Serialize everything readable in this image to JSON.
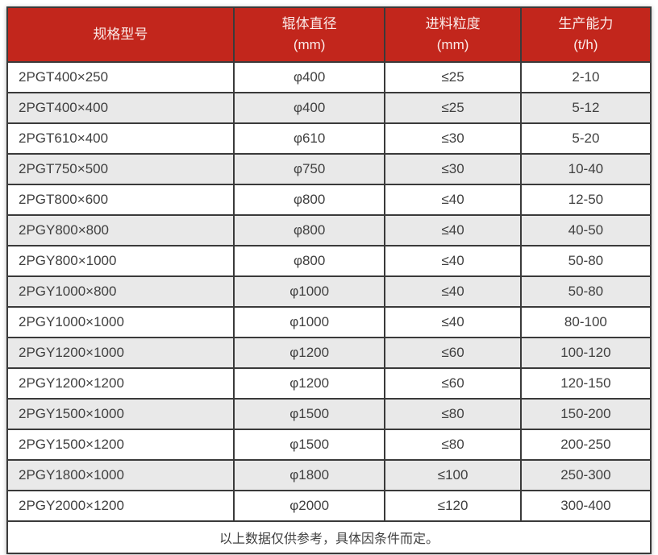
{
  "chart_data": {
    "type": "table",
    "columns": [
      {
        "label": "规格型号",
        "unit": ""
      },
      {
        "label": "辊体直径",
        "unit": "(mm)"
      },
      {
        "label": "进料粒度",
        "unit": "(mm)"
      },
      {
        "label": "生产能力",
        "unit": "(t/h)"
      }
    ],
    "rows": [
      [
        "2PGT400×250",
        "φ400",
        "≤25",
        "2-10"
      ],
      [
        "2PGT400×400",
        "φ400",
        "≤25",
        "5-12"
      ],
      [
        "2PGT610×400",
        "φ610",
        "≤30",
        "5-20"
      ],
      [
        "2PGT750×500",
        "φ750",
        "≤30",
        "10-40"
      ],
      [
        "2PGT800×600",
        "φ800",
        "≤40",
        "12-50"
      ],
      [
        "2PGY800×800",
        "φ800",
        "≤40",
        "40-50"
      ],
      [
        "2PGY800×1000",
        "φ800",
        "≤40",
        "50-80"
      ],
      [
        "2PGY1000×800",
        "φ1000",
        "≤40",
        "50-80"
      ],
      [
        "2PGY1000×1000",
        "φ1000",
        "≤40",
        "80-100"
      ],
      [
        "2PGY1200×1000",
        "φ1200",
        "≤60",
        "100-120"
      ],
      [
        "2PGY1200×1200",
        "φ1200",
        "≤60",
        "120-150"
      ],
      [
        "2PGY1500×1000",
        "φ1500",
        "≤80",
        "150-200"
      ],
      [
        "2PGY1500×1200",
        "φ1500",
        "≤80",
        "200-250"
      ],
      [
        "2PGY1800×1000",
        "φ1800",
        "≤100",
        "250-300"
      ],
      [
        "2PGY2000×1200",
        "φ2000",
        "≤120",
        "300-400"
      ]
    ],
    "footer_note": "以上数据仅供参考，具体因条件而定。"
  },
  "colors": {
    "header_bg": "#c2261c",
    "header_text": "#fbebe9",
    "row_alt_bg": "#e9e9e9",
    "border": "#3a3a3a",
    "cell_text": "#404040"
  }
}
